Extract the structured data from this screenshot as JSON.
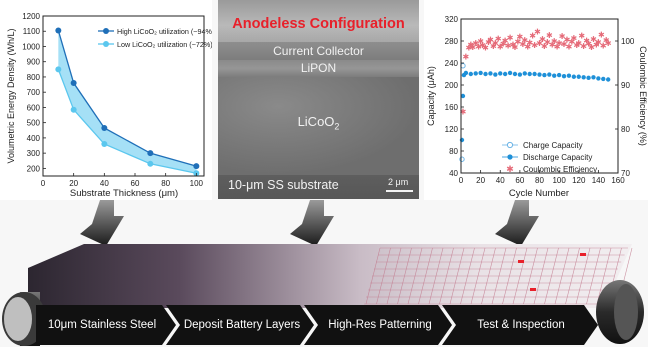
{
  "chart_left": {
    "type": "line",
    "ylabel": "Volumetric Energy Density (Wh/L)",
    "xlabel": "Substrate Thickness (μm)",
    "xticks": [
      "0",
      "20",
      "40",
      "60",
      "80",
      "100"
    ],
    "yticks": [
      "200",
      "300",
      "400",
      "500",
      "600",
      "700",
      "800",
      "900",
      "1000",
      "1100",
      "1200"
    ],
    "legend": [
      "High LiCoO₂ utilization (~94%)",
      "Low LiCoO₂ utilization (~72%)"
    ]
  },
  "chart_data": [
    {
      "type": "line",
      "xlabel": "Substrate Thickness (μm)",
      "ylabel": "Volumetric Energy Density (Wh/L)",
      "xlim": [
        0,
        105
      ],
      "ylim": [
        150,
        1200
      ],
      "series": [
        {
          "name": "High LiCoO₂ utilization (~94%)",
          "x": [
            10,
            20,
            40,
            70,
            100
          ],
          "y": [
            1105,
            760,
            465,
            300,
            215
          ],
          "color": "#1f6fb8"
        },
        {
          "name": "Low LiCoO₂ utilization (~72%)",
          "x": [
            10,
            20,
            40,
            70,
            100
          ],
          "y": [
            850,
            585,
            360,
            230,
            168
          ],
          "color": "#5bc7ee"
        }
      ],
      "fill_between": true,
      "legend_position": "top-right",
      "grid": false
    },
    {
      "type": "scatter",
      "xlabel": "Cycle Number",
      "ylabel": "Capacity (μAh)",
      "y2label": "Coulombic Efficiency (%)",
      "xlim": [
        0,
        160
      ],
      "ylim": [
        40,
        320
      ],
      "y2lim": [
        70,
        105
      ],
      "series": [
        {
          "name": "Charge Capacity",
          "axis": "left",
          "marker": "open-circle",
          "color": "#6cb4e6",
          "x": [
            1,
            2
          ],
          "y": [
            65,
            235
          ]
        },
        {
          "name": "Discharge Capacity",
          "axis": "left",
          "marker": "filled-circle",
          "color": "#1e90d8",
          "x": [
            1,
            2,
            3,
            5,
            10,
            15,
            20,
            25,
            30,
            35,
            40,
            45,
            50,
            55,
            60,
            65,
            70,
            75,
            80,
            85,
            90,
            95,
            100,
            105,
            110,
            115,
            120,
            125,
            130,
            135,
            140,
            145,
            150
          ],
          "y": [
            100,
            180,
            218,
            222,
            220,
            221,
            222,
            220,
            221,
            219,
            221,
            220,
            222,
            220,
            219,
            221,
            220,
            220,
            219,
            218,
            219,
            217,
            218,
            216,
            217,
            215,
            215,
            214,
            213,
            214,
            212,
            211,
            210
          ]
        },
        {
          "name": "Coulombic Efficiency",
          "axis": "right",
          "marker": "star",
          "color": "#e56a78",
          "x": [
            2,
            5,
            8,
            10,
            12,
            15,
            18,
            20,
            22,
            25,
            28,
            30,
            33,
            35,
            38,
            40,
            43,
            45,
            48,
            50,
            53,
            55,
            58,
            60,
            63,
            65,
            68,
            70,
            73,
            75,
            78,
            80,
            83,
            85,
            88,
            90,
            93,
            95,
            98,
            100,
            103,
            105,
            108,
            110,
            113,
            115,
            118,
            120,
            123,
            125,
            128,
            130,
            133,
            135,
            138,
            140,
            143,
            145,
            148,
            150
          ],
          "y": [
            84,
            96.5,
            98.5,
            99.2,
            98.6,
            99.5,
            98.8,
            100,
            99.1,
            98.5,
            99.8,
            100.3,
            98.9,
            99.6,
            100.6,
            98.7,
            99.4,
            100.1,
            99,
            100.8,
            99.2,
            98.6,
            99.9,
            101,
            99.3,
            100.2,
            98.8,
            99.7,
            101.2,
            99.1,
            102.2,
            99.5,
            100.4,
            98.9,
            99.8,
            101.4,
            99.2,
            100,
            98.7,
            99.6,
            101.1,
            99.3,
            100.3,
            98.8,
            99.9,
            100.7,
            99.1,
            99.5,
            101.3,
            98.9,
            100.1,
            99.4,
            98.6,
            100.5,
            99.2,
            99.8,
            101.5,
            99.0,
            100.2,
            99.6
          ]
        }
      ],
      "legend_position": "center-right",
      "grid": false
    }
  ],
  "chart_right": {
    "ylabel": "Capacity (μAh)",
    "y2label": "Coulombic Efficiency (%)",
    "xlabel": "Cycle Number",
    "xticks": [
      "0",
      "20",
      "40",
      "60",
      "80",
      "100",
      "120",
      "140",
      "160"
    ],
    "yticks": [
      "40",
      "80",
      "120",
      "160",
      "200",
      "240",
      "280",
      "320"
    ],
    "y2ticks": [
      "70",
      "80",
      "90",
      "100"
    ],
    "legend": [
      "Charge Capacity",
      "Discharge Capacity",
      "Coulombic Efficiency"
    ]
  },
  "sem": {
    "title": "Anodeless Configuration",
    "current_collector": "Current Collector",
    "lipon": "LiPON",
    "cathode": "LiCoO",
    "cathode_sub": "2",
    "substrate": "10-μm SS substrate",
    "scale": "2 μm"
  },
  "steps": [
    {
      "label": "10μm Stainless Steel"
    },
    {
      "label": "Deposit Battery Layers"
    },
    {
      "label": "High-Res Patterning"
    },
    {
      "label": "Test & Inspection"
    }
  ],
  "colors": {
    "belt_dark": "#4a3a4a",
    "grid_line": "#c27a8e",
    "step_bg": "#111111",
    "sem_title": "#e8202a",
    "hot_spot": "#e8202a"
  }
}
